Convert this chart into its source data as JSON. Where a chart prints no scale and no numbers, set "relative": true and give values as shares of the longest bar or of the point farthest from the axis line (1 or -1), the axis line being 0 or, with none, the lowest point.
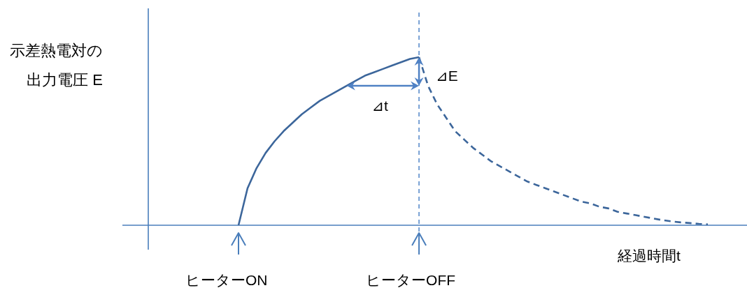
{
  "chart_data": {
    "type": "line",
    "relative": true,
    "xlabel": "経過時間t",
    "categories": [
      null,
      null,
      null,
      null,
      null,
      null,
      null,
      null,
      null,
      null,
      null,
      null,
      null,
      null,
      null,
      null,
      null,
      null,
      null,
      null,
      null,
      null,
      null,
      null,
      null,
      null,
      null,
      null,
      null,
      null,
      null,
      null,
      null,
      null,
      null,
      null,
      null,
      null,
      null,
      null,
      null,
      null,
      null,
      null,
      null,
      null,
      null,
      null,
      null,
      null,
      null,
      null,
      null
    ],
    "series": [
      {
        "color": "#3c669b",
        "line_style": "solid",
        "values": [
          0,
          0.22,
          0.34,
          0.43,
          0.5,
          0.56,
          0.61,
          0.66,
          0.7,
          0.74,
          0.77,
          0.8,
          0.83,
          0.86,
          0.89,
          0.91,
          0.93,
          0.95,
          0.97,
          0.99,
          1,
          null,
          null,
          null,
          null,
          null,
          null,
          null,
          null,
          null,
          null,
          null,
          null,
          null,
          null,
          null,
          null,
          null,
          null,
          null,
          null,
          null,
          null,
          null,
          null,
          null,
          null,
          null,
          null,
          null,
          null,
          null,
          null
        ]
      },
      {
        "color": "#3c669b",
        "line_style": "dashed",
        "values": [
          null,
          null,
          null,
          null,
          null,
          null,
          null,
          null,
          null,
          null,
          null,
          null,
          null,
          null,
          null,
          null,
          null,
          null,
          null,
          null,
          1,
          0.83,
          0.72,
          0.64,
          0.56,
          0.51,
          0.46,
          0.42,
          0.38,
          0.35,
          0.32,
          0.29,
          0.26,
          0.24,
          0.22,
          0.2,
          0.18,
          0.16,
          0.14,
          0.13,
          0.11,
          0.1,
          0.08,
          0.07,
          0.06,
          0.05,
          0.04,
          0.03,
          0.023,
          0.017,
          0.013,
          0.008,
          0.005
        ]
      }
    ],
    "annotations": [
      "示差熱電対の",
      "出力電圧 E",
      "ヒーターON",
      "ヒーターOFF",
      "⊿t",
      "⊿E"
    ]
  }
}
